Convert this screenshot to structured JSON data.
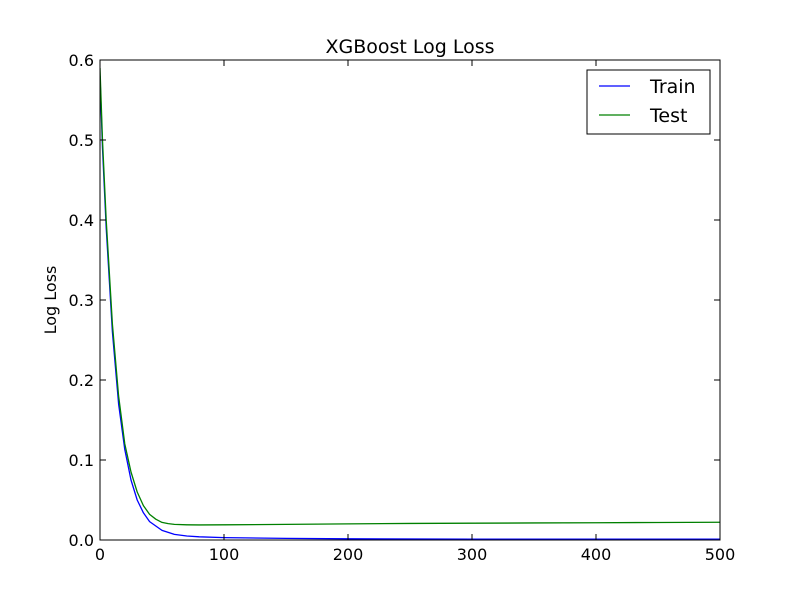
{
  "chart_data": {
    "type": "line",
    "title": "XGBoost Log Loss",
    "xlabel": "",
    "ylabel": "Log Loss",
    "xlim": [
      0,
      500
    ],
    "ylim": [
      0,
      0.6
    ],
    "xticks": [
      0,
      100,
      200,
      300,
      400,
      500
    ],
    "yticks": [
      0.0,
      0.1,
      0.2,
      0.3,
      0.4,
      0.5,
      0.6
    ],
    "xtick_labels": [
      "0",
      "100",
      "200",
      "300",
      "400",
      "500"
    ],
    "ytick_labels": [
      "0.0",
      "0.1",
      "0.2",
      "0.3",
      "0.4",
      "0.5",
      "0.6"
    ],
    "grid": false,
    "legend_position": "top-right",
    "series": [
      {
        "name": "Train",
        "color": "#0000ff",
        "x": [
          0,
          2,
          5,
          10,
          15,
          20,
          25,
          30,
          35,
          40,
          50,
          60,
          70,
          80,
          100,
          150,
          200,
          300,
          400,
          500
        ],
        "y": [
          0.58,
          0.49,
          0.39,
          0.26,
          0.17,
          0.113,
          0.075,
          0.05,
          0.034,
          0.023,
          0.012,
          0.007,
          0.005,
          0.004,
          0.003,
          0.002,
          0.0015,
          0.001,
          0.001,
          0.001
        ]
      },
      {
        "name": "Test",
        "color": "#008000",
        "x": [
          0,
          2,
          5,
          10,
          15,
          20,
          25,
          30,
          35,
          40,
          45,
          50,
          55,
          60,
          70,
          80,
          100,
          150,
          200,
          250,
          300,
          350,
          400,
          450,
          500
        ],
        "y": [
          0.59,
          0.5,
          0.4,
          0.27,
          0.18,
          0.12,
          0.085,
          0.06,
          0.043,
          0.032,
          0.026,
          0.022,
          0.0205,
          0.0195,
          0.019,
          0.0188,
          0.019,
          0.0195,
          0.0202,
          0.0207,
          0.021,
          0.0213,
          0.0216,
          0.0219,
          0.0222
        ]
      }
    ]
  }
}
